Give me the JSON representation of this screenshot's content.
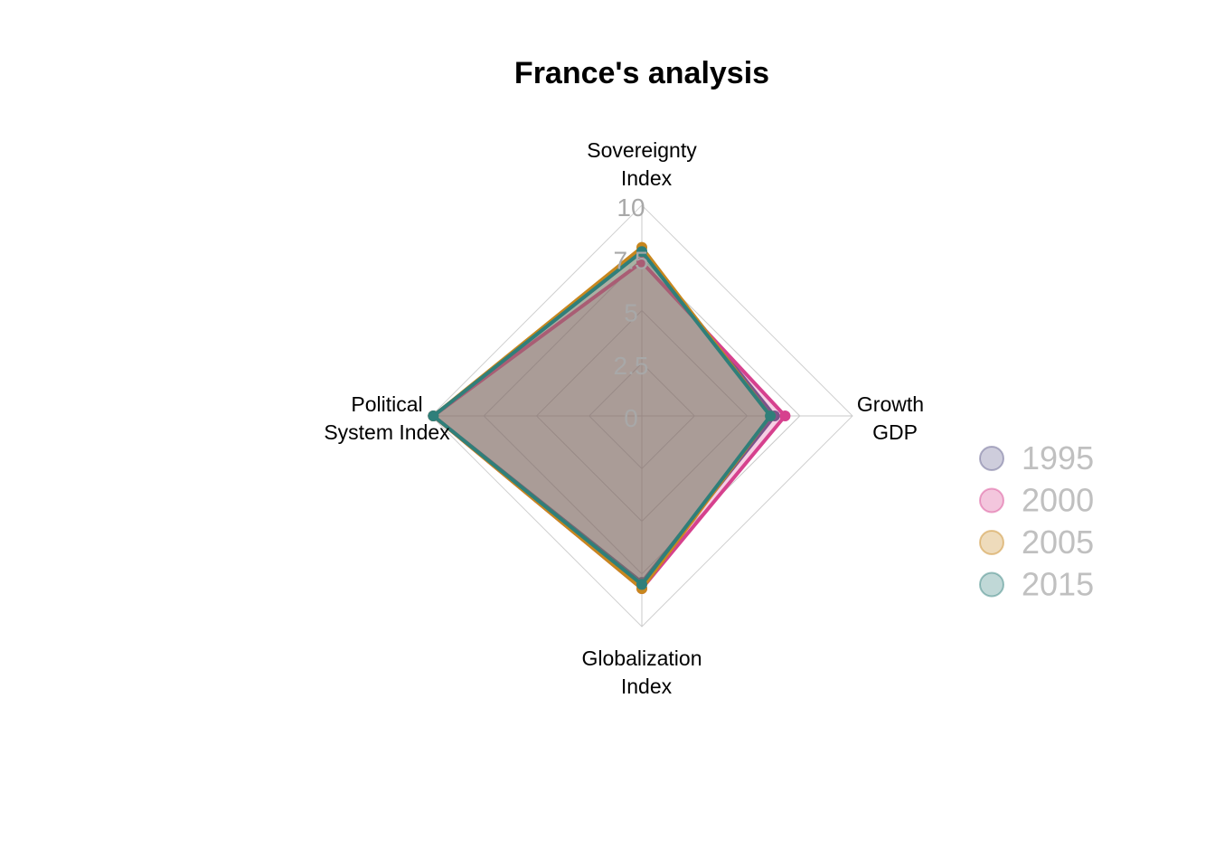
{
  "chart_data": {
    "type": "radar",
    "title": "France's analysis",
    "axes": [
      [
        "Sovereignty",
        "Index"
      ],
      [
        "Growth",
        "GDP"
      ],
      [
        "Globalization",
        "Index"
      ],
      [
        "Political",
        "System Index"
      ]
    ],
    "scale_labels": [
      "0",
      "2.5",
      "5",
      "7.5",
      "10"
    ],
    "range": [
      0,
      10
    ],
    "series": [
      {
        "name": "1995",
        "color": "#5e5a8a",
        "values": [
          7.8,
          6.3,
          7.9,
          9.9
        ]
      },
      {
        "name": "2000",
        "color": "#d6418e",
        "values": [
          7.3,
          6.8,
          8.2,
          9.9
        ]
      },
      {
        "name": "2005",
        "color": "#c8871e",
        "values": [
          8.0,
          6.1,
          8.2,
          9.9
        ]
      },
      {
        "name": "2015",
        "color": "#2f7f7a",
        "values": [
          7.8,
          6.1,
          8.0,
          9.9
        ]
      }
    ],
    "legend_position": "right",
    "fill_opacity": 0.25
  }
}
